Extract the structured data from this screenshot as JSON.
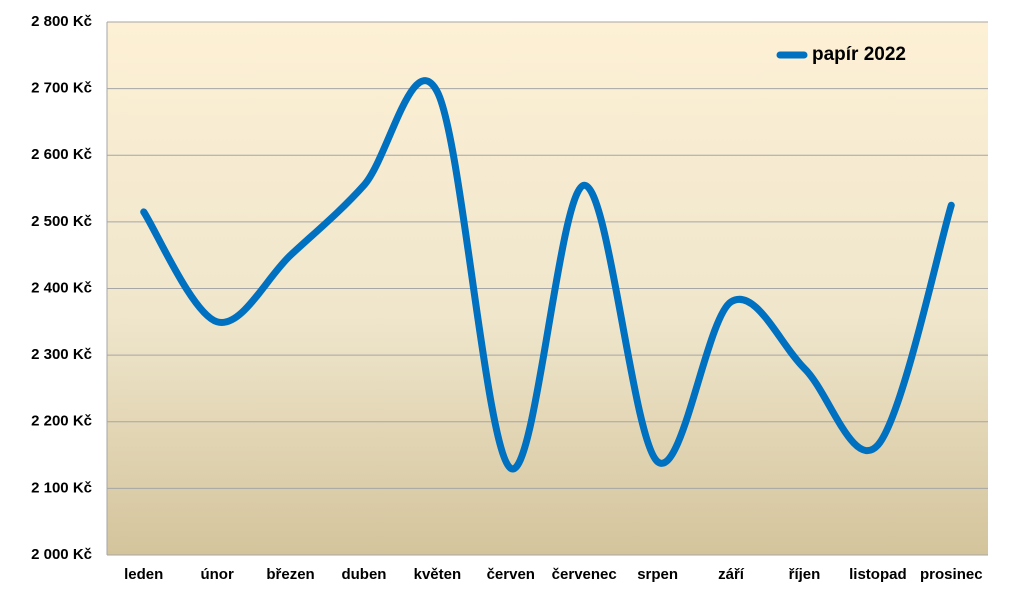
{
  "chart_data": {
    "type": "line",
    "categories": [
      "leden",
      "únor",
      "březen",
      "duben",
      "květen",
      "červen",
      "červenec",
      "srpen",
      "září",
      "říjen",
      "listopad",
      "prosinec"
    ],
    "series": [
      {
        "name": "papír 2022",
        "color": "#0070c0",
        "values": [
          2515,
          2350,
          2450,
          2555,
          2695,
          2130,
          2555,
          2140,
          2380,
          2280,
          2165,
          2525
        ]
      }
    ],
    "ylim": [
      2000,
      2800
    ],
    "yticks": [
      {
        "value": 2000,
        "label": "2 000 Kč"
      },
      {
        "value": 2100,
        "label": "2 100 Kč"
      },
      {
        "value": 2200,
        "label": "2 200 Kč"
      },
      {
        "value": 2300,
        "label": "2 300 Kč"
      },
      {
        "value": 2400,
        "label": "2 400 Kč"
      },
      {
        "value": 2500,
        "label": "2 500 Kč"
      },
      {
        "value": 2600,
        "label": "2 600 Kč"
      },
      {
        "value": 2700,
        "label": "2 700 Kč"
      },
      {
        "value": 2800,
        "label": "2 800 Kč"
      }
    ],
    "grid": true,
    "legend": "top-right",
    "smooth": true
  }
}
